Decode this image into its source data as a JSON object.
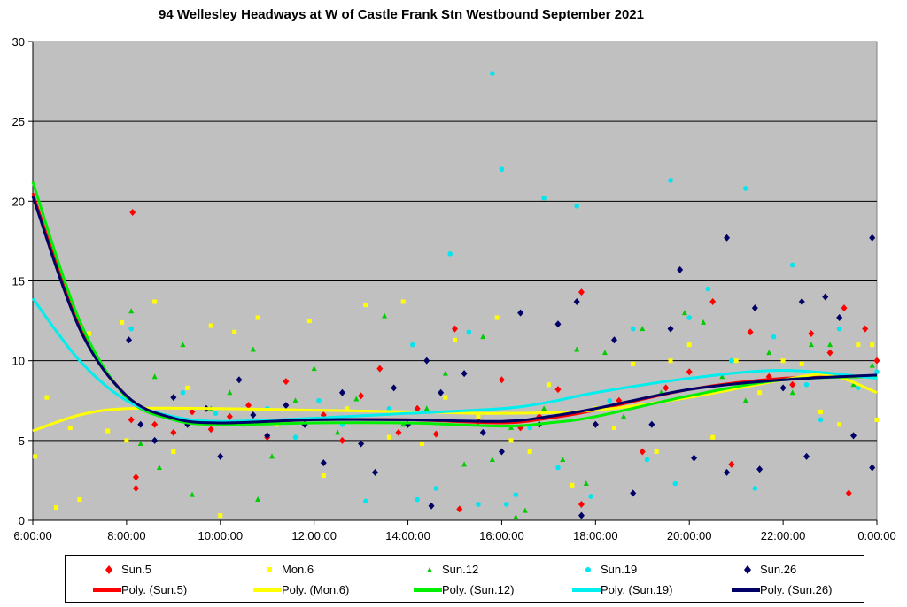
{
  "chart_data": {
    "type": "scatter",
    "title": "94 Wellesley Headways at W of Castle Frank Stn Westbound September 2021",
    "xlabel": "",
    "ylabel": "",
    "xlim": [
      6,
      24
    ],
    "ylim": [
      0,
      30
    ],
    "grid": true,
    "legend_placement": "bottom",
    "y_ticks": [
      0,
      5,
      10,
      15,
      20,
      25,
      30
    ],
    "x_ticks": [
      6,
      8,
      10,
      12,
      14,
      16,
      18,
      20,
      22,
      24
    ],
    "x_tick_labels": [
      "6:00:00",
      "8:00:00",
      "10:00:00",
      "12:00:00",
      "14:00:00",
      "16:00:00",
      "18:00:00",
      "20:00:00",
      "22:00:00",
      "0:00:00"
    ],
    "series": [
      {
        "name": "Sun.5",
        "marker": "diamond",
        "color": "#ff0000",
        "points": [
          [
            8.1,
            6.3
          ],
          [
            8.13,
            19.3
          ],
          [
            8.2,
            2.7
          ],
          [
            8.2,
            2.0
          ],
          [
            8.6,
            6.0
          ],
          [
            9.0,
            5.5
          ],
          [
            9.4,
            6.8
          ],
          [
            9.8,
            5.7
          ],
          [
            10.2,
            6.5
          ],
          [
            10.6,
            7.2
          ],
          [
            11.0,
            5.2
          ],
          [
            11.4,
            8.7
          ],
          [
            11.8,
            6.0
          ],
          [
            12.2,
            6.6
          ],
          [
            12.6,
            5.0
          ],
          [
            13.0,
            7.8
          ],
          [
            13.4,
            9.5
          ],
          [
            13.8,
            5.5
          ],
          [
            14.2,
            7.0
          ],
          [
            14.6,
            5.4
          ],
          [
            15.0,
            12.0
          ],
          [
            15.1,
            0.7
          ],
          [
            15.5,
            6.2
          ],
          [
            16.0,
            8.8
          ],
          [
            16.4,
            5.8
          ],
          [
            16.8,
            6.5
          ],
          [
            17.2,
            8.2
          ],
          [
            17.7,
            14.3
          ],
          [
            17.7,
            1.0
          ],
          [
            18.0,
            6.0
          ],
          [
            18.5,
            7.5
          ],
          [
            19.0,
            4.3
          ],
          [
            19.5,
            8.3
          ],
          [
            20.0,
            9.3
          ],
          [
            20.5,
            13.7
          ],
          [
            20.9,
            3.5
          ],
          [
            21.3,
            11.8
          ],
          [
            21.7,
            9.0
          ],
          [
            22.2,
            8.5
          ],
          [
            22.6,
            11.7
          ],
          [
            23.0,
            10.5
          ],
          [
            23.3,
            13.3
          ],
          [
            23.4,
            1.7
          ],
          [
            23.75,
            12.0
          ],
          [
            24.0,
            10.0
          ]
        ]
      },
      {
        "name": "Mon.6",
        "marker": "square",
        "color": "#ffff00",
        "points": [
          [
            6.05,
            4.0
          ],
          [
            6.3,
            7.7
          ],
          [
            6.5,
            0.8
          ],
          [
            6.8,
            5.8
          ],
          [
            7.0,
            1.3
          ],
          [
            7.2,
            11.7
          ],
          [
            7.6,
            5.6
          ],
          [
            7.9,
            12.4
          ],
          [
            8.0,
            5.0
          ],
          [
            8.6,
            13.7
          ],
          [
            9.0,
            4.3
          ],
          [
            9.3,
            8.3
          ],
          [
            9.8,
            12.2
          ],
          [
            10.0,
            0.3
          ],
          [
            10.3,
            11.8
          ],
          [
            10.8,
            12.7
          ],
          [
            11.2,
            6.0
          ],
          [
            11.9,
            12.5
          ],
          [
            12.2,
            2.8
          ],
          [
            12.7,
            7.0
          ],
          [
            13.1,
            13.5
          ],
          [
            13.6,
            5.2
          ],
          [
            13.9,
            13.7
          ],
          [
            14.3,
            4.8
          ],
          [
            14.8,
            7.7
          ],
          [
            15.0,
            11.3
          ],
          [
            15.5,
            6.5
          ],
          [
            15.9,
            12.7
          ],
          [
            16.2,
            5.0
          ],
          [
            16.6,
            4.3
          ],
          [
            17.0,
            8.5
          ],
          [
            17.5,
            2.2
          ],
          [
            18.0,
            7.0
          ],
          [
            18.4,
            5.8
          ],
          [
            18.8,
            9.8
          ],
          [
            19.3,
            4.3
          ],
          [
            19.6,
            10.0
          ],
          [
            20.0,
            11.0
          ],
          [
            20.5,
            5.2
          ],
          [
            21.0,
            10.0
          ],
          [
            21.5,
            8.0
          ],
          [
            22.0,
            10.0
          ],
          [
            22.4,
            9.8
          ],
          [
            22.8,
            6.8
          ],
          [
            23.2,
            6.0
          ],
          [
            23.6,
            11.0
          ],
          [
            23.9,
            11.0
          ],
          [
            24.0,
            6.3
          ]
        ]
      },
      {
        "name": "Sun.12",
        "marker": "triangle",
        "color": "#00cc00",
        "points": [
          [
            8.1,
            13.1
          ],
          [
            8.3,
            4.8
          ],
          [
            8.6,
            9.0
          ],
          [
            8.7,
            3.3
          ],
          [
            9.2,
            11.0
          ],
          [
            9.4,
            1.6
          ],
          [
            9.8,
            7.0
          ],
          [
            10.2,
            8.0
          ],
          [
            10.7,
            10.7
          ],
          [
            10.8,
            1.3
          ],
          [
            11.1,
            4.0
          ],
          [
            11.6,
            7.5
          ],
          [
            12.0,
            9.5
          ],
          [
            12.5,
            5.5
          ],
          [
            12.9,
            7.6
          ],
          [
            13.5,
            12.8
          ],
          [
            13.9,
            6.0
          ],
          [
            14.4,
            7.0
          ],
          [
            14.8,
            9.2
          ],
          [
            15.2,
            3.5
          ],
          [
            15.6,
            11.5
          ],
          [
            15.8,
            3.8
          ],
          [
            16.2,
            5.8
          ],
          [
            16.3,
            0.2
          ],
          [
            16.5,
            0.6
          ],
          [
            16.9,
            7.0
          ],
          [
            17.3,
            3.8
          ],
          [
            17.6,
            10.7
          ],
          [
            17.8,
            2.3
          ],
          [
            18.2,
            10.5
          ],
          [
            18.6,
            6.5
          ],
          [
            19.0,
            12.0
          ],
          [
            19.4,
            8.0
          ],
          [
            19.9,
            13.0
          ],
          [
            20.3,
            12.4
          ],
          [
            20.7,
            9.0
          ],
          [
            21.2,
            7.5
          ],
          [
            21.7,
            10.5
          ],
          [
            22.2,
            8.0
          ],
          [
            22.6,
            11.0
          ],
          [
            23.0,
            11.0
          ],
          [
            23.5,
            8.5
          ],
          [
            23.9,
            9.7
          ]
        ]
      },
      {
        "name": "Sun.19",
        "marker": "circle",
        "color": "#00e5ee",
        "points": [
          [
            8.1,
            12.0
          ],
          [
            8.6,
            5.0
          ],
          [
            9.2,
            8.0
          ],
          [
            9.9,
            6.7
          ],
          [
            10.5,
            6.0
          ],
          [
            11.0,
            7.0
          ],
          [
            11.6,
            5.2
          ],
          [
            12.1,
            7.5
          ],
          [
            12.6,
            6.0
          ],
          [
            13.1,
            1.2
          ],
          [
            13.6,
            7.0
          ],
          [
            14.1,
            11.0
          ],
          [
            14.2,
            1.3
          ],
          [
            14.6,
            2.0
          ],
          [
            14.9,
            16.7
          ],
          [
            15.3,
            11.8
          ],
          [
            15.5,
            1.0
          ],
          [
            15.8,
            28.0
          ],
          [
            16.0,
            22.0
          ],
          [
            16.1,
            1.0
          ],
          [
            16.3,
            1.6
          ],
          [
            16.6,
            5.8
          ],
          [
            16.9,
            20.2
          ],
          [
            17.2,
            3.3
          ],
          [
            17.6,
            19.7
          ],
          [
            17.9,
            1.5
          ],
          [
            18.3,
            7.5
          ],
          [
            18.8,
            12.0
          ],
          [
            19.1,
            3.8
          ],
          [
            19.6,
            21.3
          ],
          [
            19.7,
            2.3
          ],
          [
            20.0,
            12.7
          ],
          [
            20.4,
            14.5
          ],
          [
            20.9,
            10.0
          ],
          [
            21.2,
            20.8
          ],
          [
            21.4,
            2.0
          ],
          [
            21.8,
            11.5
          ],
          [
            22.2,
            16.0
          ],
          [
            22.5,
            8.5
          ],
          [
            22.8,
            6.3
          ],
          [
            23.2,
            12.0
          ],
          [
            23.6,
            8.3
          ],
          [
            24.0,
            9.3
          ]
        ]
      },
      {
        "name": "Sun.26",
        "marker": "diamond",
        "color": "#000066",
        "points": [
          [
            8.05,
            11.3
          ],
          [
            8.3,
            6.0
          ],
          [
            8.6,
            5.0
          ],
          [
            9.0,
            7.7
          ],
          [
            9.3,
            6.0
          ],
          [
            9.7,
            7.0
          ],
          [
            10.0,
            4.0
          ],
          [
            10.4,
            8.8
          ],
          [
            10.7,
            6.6
          ],
          [
            11.0,
            5.3
          ],
          [
            11.4,
            7.2
          ],
          [
            11.8,
            6.0
          ],
          [
            12.2,
            3.6
          ],
          [
            12.6,
            8.0
          ],
          [
            13.0,
            4.8
          ],
          [
            13.3,
            3.0
          ],
          [
            13.7,
            8.3
          ],
          [
            14.0,
            6.0
          ],
          [
            14.4,
            10.0
          ],
          [
            14.5,
            0.9
          ],
          [
            14.7,
            8.0
          ],
          [
            15.2,
            9.2
          ],
          [
            15.6,
            5.5
          ],
          [
            16.0,
            4.3
          ],
          [
            16.4,
            13.0
          ],
          [
            16.8,
            6.0
          ],
          [
            17.2,
            12.3
          ],
          [
            17.6,
            13.7
          ],
          [
            17.7,
            0.3
          ],
          [
            18.0,
            6.0
          ],
          [
            18.4,
            11.3
          ],
          [
            18.8,
            1.7
          ],
          [
            19.2,
            6.0
          ],
          [
            19.6,
            12.0
          ],
          [
            19.8,
            15.7
          ],
          [
            20.1,
            3.9
          ],
          [
            20.8,
            17.7
          ],
          [
            20.8,
            3.0
          ],
          [
            21.4,
            13.3
          ],
          [
            21.5,
            3.2
          ],
          [
            22.0,
            8.3
          ],
          [
            22.4,
            13.7
          ],
          [
            22.5,
            4.0
          ],
          [
            22.9,
            14.0
          ],
          [
            23.2,
            12.7
          ],
          [
            23.5,
            5.3
          ],
          [
            23.9,
            17.7
          ],
          [
            23.9,
            3.3
          ]
        ]
      }
    ],
    "trendlines": [
      {
        "name": "Poly. (Sun.5)",
        "color": "#ff0000",
        "x": [
          6,
          7,
          8,
          9,
          10,
          12,
          14,
          16,
          17,
          18,
          20,
          22,
          24
        ],
        "y": [
          20.5,
          12.2,
          7.8,
          6.4,
          6.1,
          6.3,
          6.3,
          6.1,
          6.4,
          6.9,
          8.2,
          8.9,
          9.0
        ]
      },
      {
        "name": "Poly. (Mon.6)",
        "color": "#ffff00",
        "x": [
          6,
          7,
          8,
          10,
          12,
          14,
          16,
          18,
          20,
          22,
          23,
          24
        ],
        "y": [
          5.6,
          6.6,
          7.0,
          7.0,
          6.9,
          6.8,
          6.7,
          6.9,
          7.7,
          8.8,
          9.1,
          8.0
        ]
      },
      {
        "name": "Poly. (Sun.12)",
        "color": "#00ee00",
        "x": [
          6,
          7,
          8,
          9,
          10,
          12,
          14,
          16,
          17,
          18,
          20,
          22,
          24
        ],
        "y": [
          21.2,
          12.5,
          7.7,
          6.3,
          6.0,
          6.1,
          6.1,
          5.9,
          6.1,
          6.5,
          7.8,
          8.8,
          9.0
        ]
      },
      {
        "name": "Poly. (Sun.19)",
        "color": "#00eeee",
        "x": [
          6,
          7,
          8,
          9,
          10,
          12,
          14,
          16,
          17,
          18,
          20,
          22,
          24
        ],
        "y": [
          13.9,
          10.0,
          7.5,
          6.5,
          6.2,
          6.4,
          6.7,
          7.0,
          7.4,
          8.0,
          8.9,
          9.4,
          8.9
        ]
      },
      {
        "name": "Poly. (Sun.26)",
        "color": "#000066",
        "x": [
          6,
          7,
          8,
          9,
          10,
          12,
          14,
          16,
          17,
          18,
          20,
          22,
          24
        ],
        "y": [
          20.3,
          12.0,
          7.8,
          6.4,
          6.1,
          6.3,
          6.3,
          6.2,
          6.5,
          7.0,
          8.2,
          8.8,
          9.1
        ]
      }
    ]
  }
}
